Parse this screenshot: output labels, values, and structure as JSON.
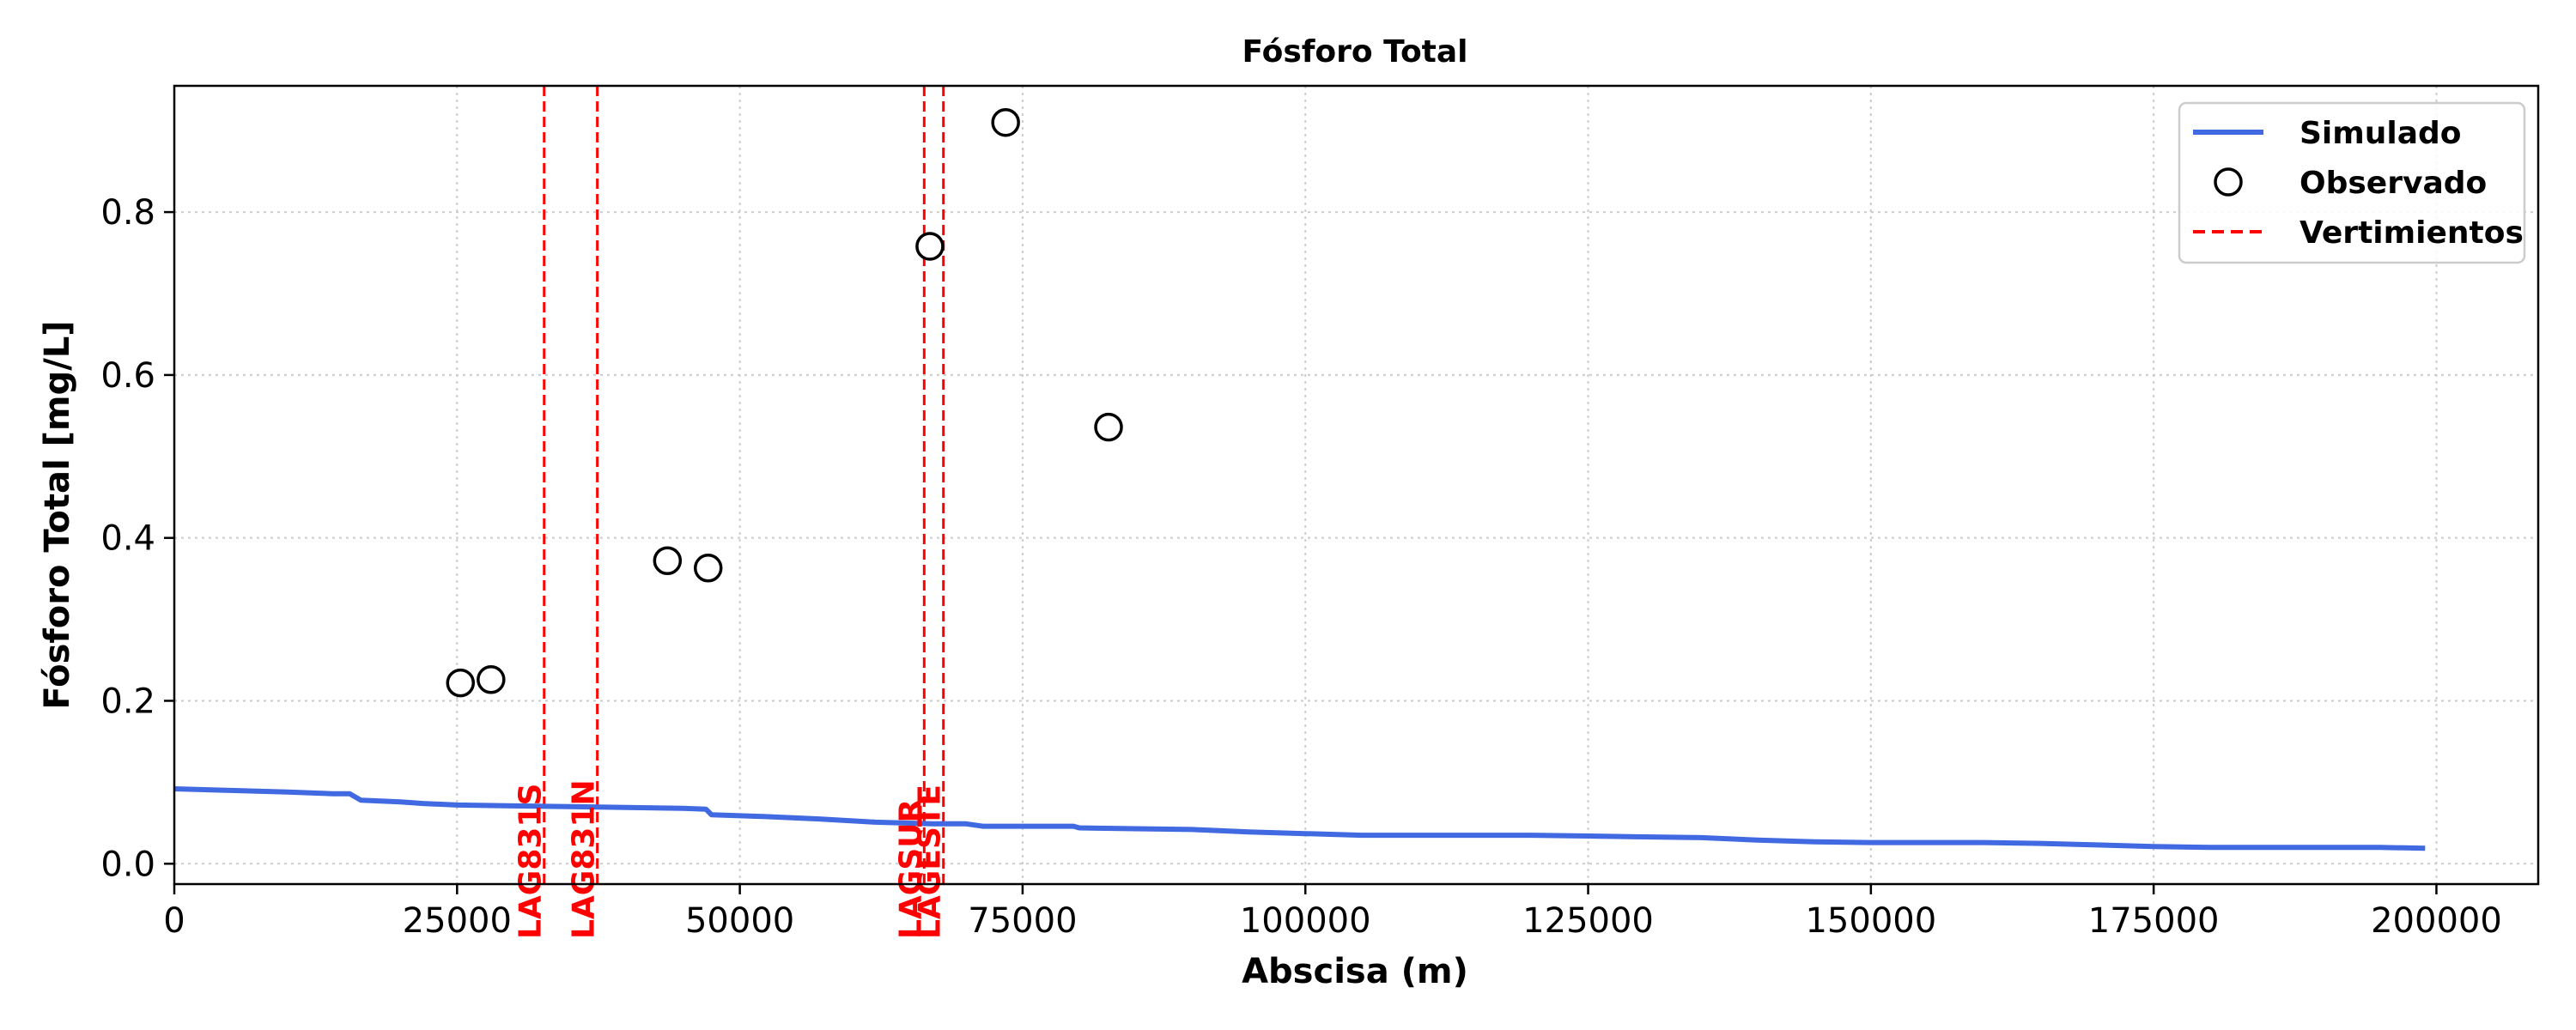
{
  "chart_data": {
    "type": "line",
    "title": "Fósforo Total",
    "xlabel": "Abscisa (m)",
    "ylabel": "Fósforo Total [mg/L]",
    "xlim": [
      0,
      209000
    ],
    "ylim": [
      -0.025,
      0.955
    ],
    "xticks": [
      0,
      25000,
      50000,
      75000,
      100000,
      125000,
      150000,
      175000,
      200000
    ],
    "yticks": [
      0.0,
      0.2,
      0.4,
      0.6,
      0.8
    ],
    "xtick_labels": [
      "0",
      "25000",
      "50000",
      "75000",
      "100000",
      "125000",
      "150000",
      "175000",
      "200000"
    ],
    "ytick_labels": [
      "0.0",
      "0.2",
      "0.4",
      "0.6",
      "0.8"
    ],
    "grid": true,
    "legend_position": "top-right",
    "colors": {
      "simulado": "#4169e1",
      "observado": "#000000",
      "vertimientos": "#ff0000",
      "grid": "#cccccc"
    },
    "series": [
      {
        "name": "Simulado",
        "kind": "line",
        "x": [
          0,
          5000,
          10000,
          14000,
          15500,
          16500,
          20000,
          22000,
          25000,
          30000,
          35000,
          40000,
          45000,
          47000,
          47500,
          52000,
          57000,
          62000,
          67000,
          70000,
          71500,
          75000,
          79500,
          80000,
          85000,
          90000,
          95000,
          100000,
          105000,
          110000,
          115000,
          120000,
          125000,
          130000,
          135000,
          140000,
          145000,
          150000,
          155000,
          160000,
          165000,
          170000,
          175000,
          180000,
          185000,
          190000,
          195000,
          199000
        ],
        "y": [
          0.092,
          0.09,
          0.088,
          0.086,
          0.086,
          0.078,
          0.076,
          0.074,
          0.072,
          0.071,
          0.07,
          0.069,
          0.068,
          0.067,
          0.06,
          0.058,
          0.055,
          0.051,
          0.049,
          0.049,
          0.046,
          0.046,
          0.046,
          0.044,
          0.043,
          0.042,
          0.039,
          0.037,
          0.035,
          0.035,
          0.035,
          0.035,
          0.034,
          0.033,
          0.032,
          0.029,
          0.027,
          0.026,
          0.026,
          0.026,
          0.025,
          0.023,
          0.021,
          0.02,
          0.02,
          0.02,
          0.02,
          0.019
        ]
      },
      {
        "name": "Observado",
        "kind": "scatter",
        "x": [
          25300,
          28000,
          43600,
          47200,
          66800,
          73500,
          82600
        ],
        "y": [
          0.222,
          0.226,
          0.372,
          0.363,
          0.758,
          0.91,
          0.536
        ]
      }
    ],
    "vertimientos": {
      "name": "Vertimientos",
      "lines": [
        {
          "x": 32700,
          "label": "LAG831S"
        },
        {
          "x": 37400,
          "label": "LAG831N"
        },
        {
          "x": 66300,
          "label": "LAGSUR"
        },
        {
          "x": 68000,
          "label": "LAGESTE"
        }
      ]
    }
  }
}
